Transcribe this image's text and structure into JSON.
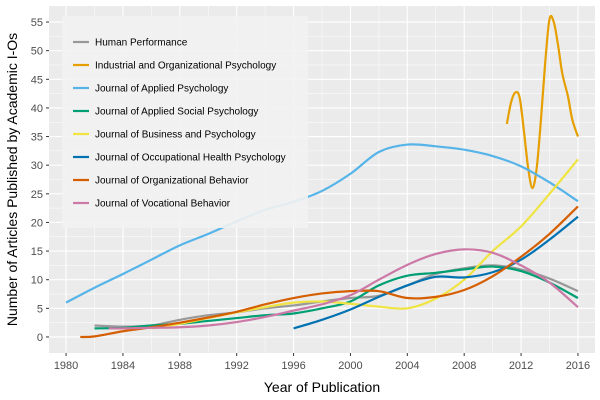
{
  "chart_data": {
    "type": "line",
    "xlabel": "Year of Publication",
    "ylabel": "Number of Articles Published by Academic I-Os",
    "xlim": [
      1978.8,
      2017.2
    ],
    "ylim": [
      -2.8,
      57.8
    ],
    "x_ticks": [
      1980,
      1984,
      1988,
      1992,
      1996,
      2000,
      2004,
      2008,
      2012,
      2016
    ],
    "y_ticks": [
      0,
      5,
      10,
      15,
      20,
      25,
      30,
      35,
      40,
      45,
      50,
      55
    ],
    "grid": true,
    "legend_position": "top-left",
    "series": [
      {
        "name": "Human Performance",
        "color": "#999999",
        "points": [
          [
            1982,
            2
          ],
          [
            1984,
            1.8
          ],
          [
            1986,
            2
          ],
          [
            1988,
            3
          ],
          [
            1990,
            3.8
          ],
          [
            1992,
            4.3
          ],
          [
            1994,
            5
          ],
          [
            1996,
            5.5
          ],
          [
            1998,
            6.2
          ],
          [
            2000,
            6.8
          ],
          [
            2002,
            7.2
          ],
          [
            2004,
            9
          ],
          [
            2006,
            11
          ],
          [
            2008,
            12
          ],
          [
            2010,
            12.5
          ],
          [
            2012,
            11.8
          ],
          [
            2014,
            10.2
          ],
          [
            2016,
            8
          ]
        ]
      },
      {
        "name": "Industrial and Organizational Psychology",
        "color": "#E69F00",
        "points": [
          [
            2011,
            37.2
          ],
          [
            2011.3,
            41
          ],
          [
            2011.6,
            42.7
          ],
          [
            2011.9,
            41.8
          ],
          [
            2012.2,
            36
          ],
          [
            2012.5,
            29.5
          ],
          [
            2012.8,
            26
          ],
          [
            2013.1,
            29.5
          ],
          [
            2013.4,
            38
          ],
          [
            2013.7,
            48
          ],
          [
            2014,
            55.5
          ],
          [
            2014.3,
            55
          ],
          [
            2014.6,
            51
          ],
          [
            2014.9,
            46
          ],
          [
            2015.3,
            42
          ],
          [
            2015.6,
            38
          ],
          [
            2016,
            35
          ]
        ]
      },
      {
        "name": "Journal of Applied Psychology",
        "color": "#56B4E9",
        "points": [
          [
            1980,
            6
          ],
          [
            1982,
            8.6
          ],
          [
            1984,
            11
          ],
          [
            1986,
            13.5
          ],
          [
            1988,
            16
          ],
          [
            1990,
            18
          ],
          [
            1992,
            20.2
          ],
          [
            1994,
            22.2
          ],
          [
            1996,
            23.6
          ],
          [
            1998,
            25.5
          ],
          [
            2000,
            28.5
          ],
          [
            2002,
            32.3
          ],
          [
            2004,
            33.6
          ],
          [
            2006,
            33.3
          ],
          [
            2008,
            32.7
          ],
          [
            2010,
            31.6
          ],
          [
            2012,
            29.8
          ],
          [
            2014,
            27
          ],
          [
            2016,
            23.7
          ]
        ]
      },
      {
        "name": "Journal of Applied Social Psychology",
        "color": "#009E73",
        "points": [
          [
            1982,
            1.5
          ],
          [
            1984,
            1.6
          ],
          [
            1986,
            2
          ],
          [
            1988,
            2.3
          ],
          [
            1990,
            2.8
          ],
          [
            1992,
            3.3
          ],
          [
            1994,
            3.8
          ],
          [
            1996,
            4.1
          ],
          [
            1998,
            5
          ],
          [
            2000,
            6.2
          ],
          [
            2002,
            9
          ],
          [
            2004,
            10.7
          ],
          [
            2006,
            11.2
          ],
          [
            2008,
            11.8
          ],
          [
            2010,
            12.3
          ],
          [
            2012,
            11.5
          ],
          [
            2014,
            9.5
          ],
          [
            2016,
            6.8
          ]
        ]
      },
      {
        "name": "Journal of Business and Psychology",
        "color": "#F0E442",
        "points": [
          [
            1986,
            1.5
          ],
          [
            1988,
            2.3
          ],
          [
            1990,
            3.3
          ],
          [
            1992,
            4.3
          ],
          [
            1994,
            5.2
          ],
          [
            1996,
            6
          ],
          [
            1998,
            6.2
          ],
          [
            2000,
            5.8
          ],
          [
            2002,
            5.3
          ],
          [
            2004,
            5
          ],
          [
            2006,
            6.7
          ],
          [
            2008,
            10
          ],
          [
            2010,
            15
          ],
          [
            2012,
            19.3
          ],
          [
            2014,
            25
          ],
          [
            2016,
            31
          ]
        ]
      },
      {
        "name": "Journal of Occupational Health Psychology",
        "color": "#0072B2",
        "points": [
          [
            1996,
            1.5
          ],
          [
            1998,
            3
          ],
          [
            2000,
            4.8
          ],
          [
            2002,
            7
          ],
          [
            2004,
            9
          ],
          [
            2006,
            10.5
          ],
          [
            2008,
            10.4
          ],
          [
            2010,
            11.3
          ],
          [
            2012,
            13.5
          ],
          [
            2014,
            17
          ],
          [
            2016,
            21
          ]
        ]
      },
      {
        "name": "Journal of Organizational Behavior",
        "color": "#D55E00",
        "points": [
          [
            1981,
            0
          ],
          [
            1982,
            0.1
          ],
          [
            1984,
            1
          ],
          [
            1986,
            1.7
          ],
          [
            1988,
            2.5
          ],
          [
            1990,
            3.4
          ],
          [
            1992,
            4.4
          ],
          [
            1994,
            5.7
          ],
          [
            1996,
            6.8
          ],
          [
            1998,
            7.6
          ],
          [
            2000,
            8
          ],
          [
            2002,
            8
          ],
          [
            2004,
            6.8
          ],
          [
            2006,
            7
          ],
          [
            2008,
            8.2
          ],
          [
            2010,
            10.6
          ],
          [
            2012,
            14
          ],
          [
            2014,
            18
          ],
          [
            2016,
            22.8
          ]
        ]
      },
      {
        "name": "Journal of Vocational Behavior",
        "color": "#CC79A7",
        "points": [
          [
            1983,
            1.5
          ],
          [
            1984,
            1.5
          ],
          [
            1986,
            1.6
          ],
          [
            1988,
            1.7
          ],
          [
            1990,
            2
          ],
          [
            1992,
            2.6
          ],
          [
            1994,
            3.5
          ],
          [
            1996,
            4.6
          ],
          [
            1998,
            5.7
          ],
          [
            2000,
            7.3
          ],
          [
            2002,
            10
          ],
          [
            2004,
            12.6
          ],
          [
            2006,
            14.5
          ],
          [
            2008,
            15.3
          ],
          [
            2010,
            14.7
          ],
          [
            2012,
            12.5
          ],
          [
            2014,
            9.5
          ],
          [
            2016,
            5.2
          ]
        ]
      }
    ]
  }
}
